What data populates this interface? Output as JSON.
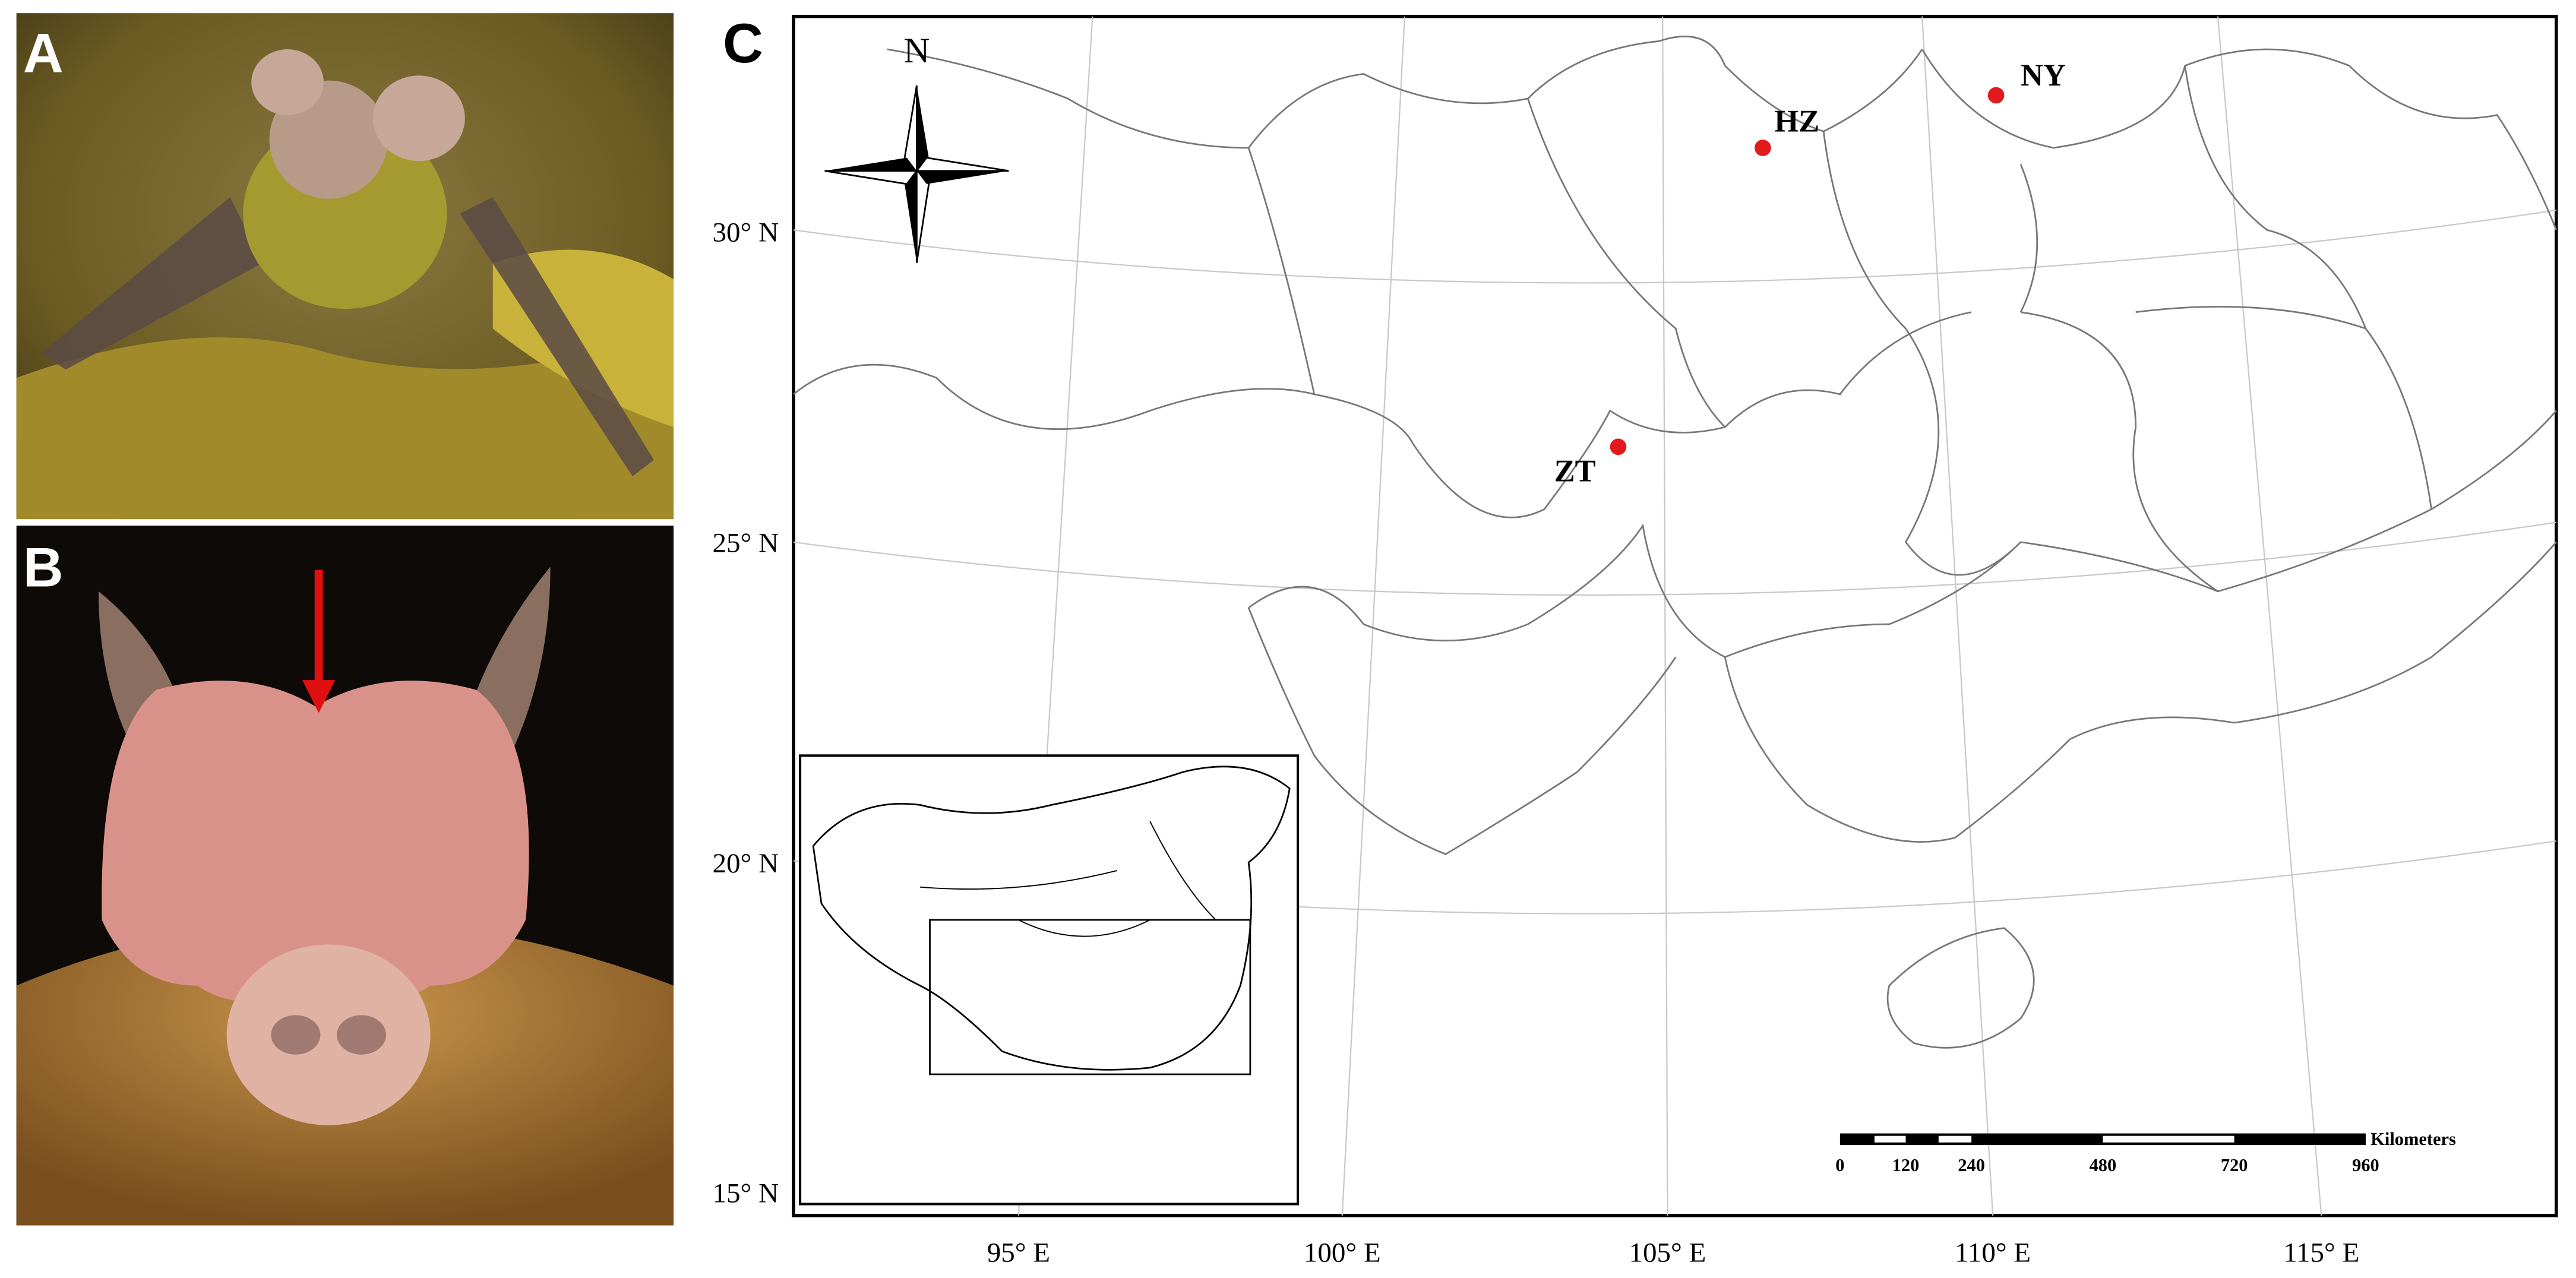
{
  "panels": {
    "a": {
      "label": "A"
    },
    "b": {
      "label": "B"
    },
    "c": {
      "label": "C",
      "north": "N",
      "sites": [
        {
          "label": "HZ"
        },
        {
          "label": "NY"
        },
        {
          "label": "ZT"
        }
      ],
      "latitude_labels": [
        "30° N",
        "25° N",
        "20° N",
        "15° N"
      ],
      "longitude_labels": [
        "95° E",
        "100° E",
        "105° E",
        "110° E",
        "115° E"
      ],
      "scale_bar": {
        "ticks": [
          "0",
          "120",
          "240",
          "480",
          "720",
          "960"
        ],
        "unit": "Kilometers"
      }
    }
  }
}
